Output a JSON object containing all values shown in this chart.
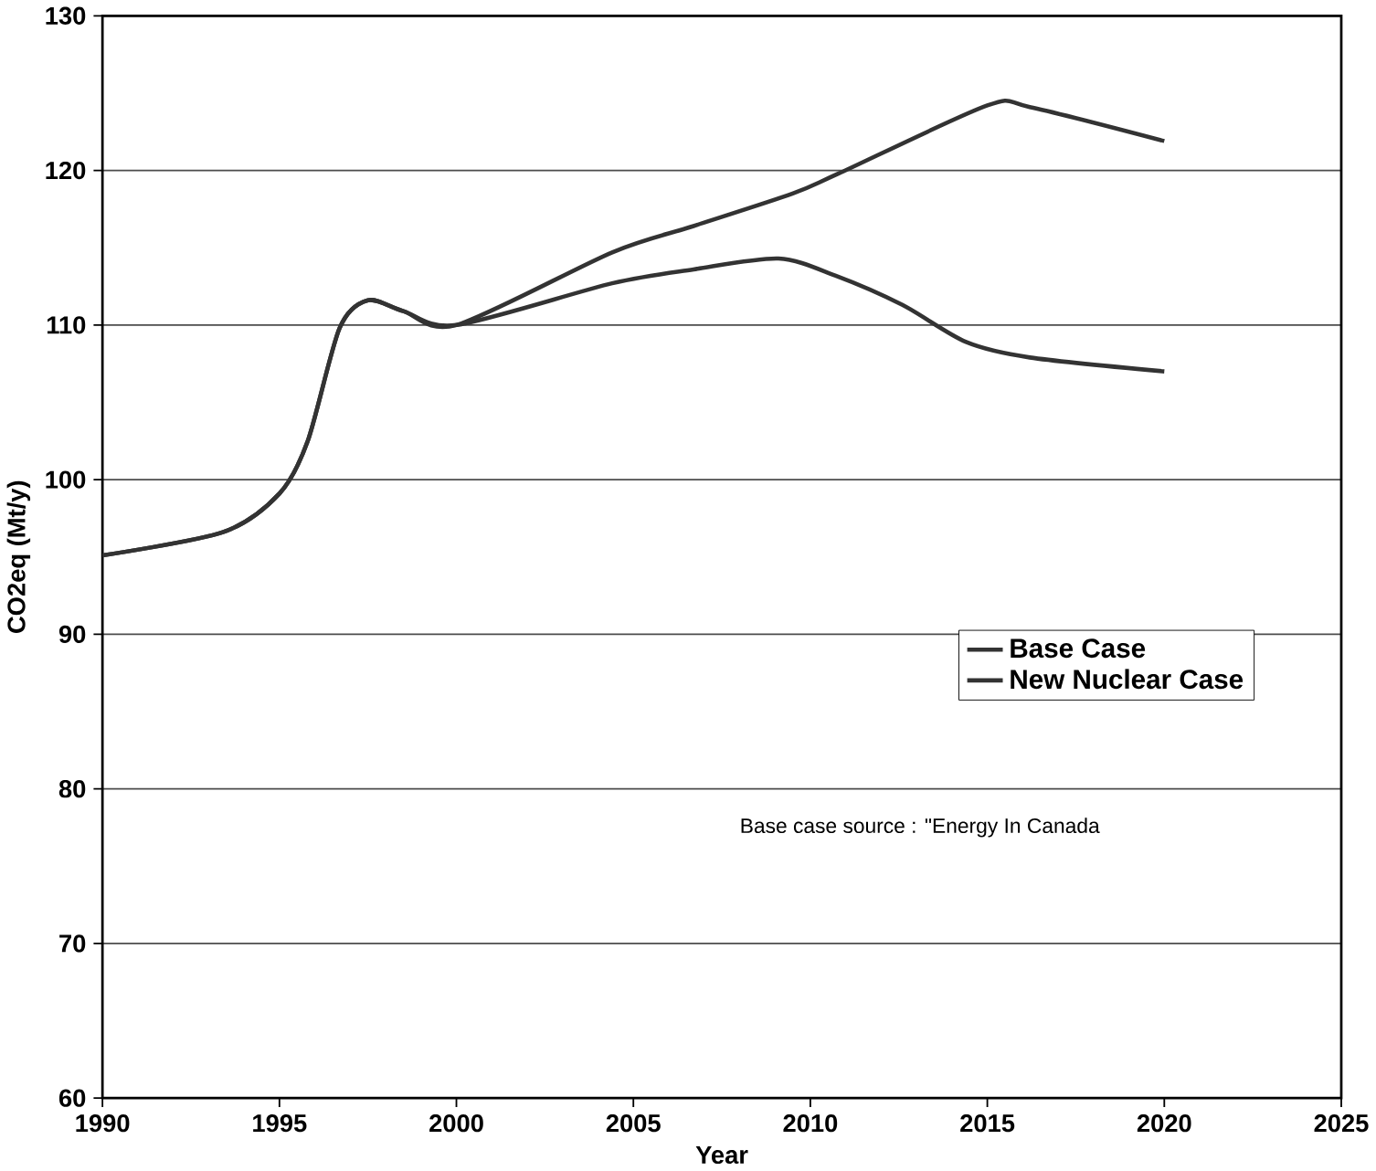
{
  "chart_data": {
    "type": "line",
    "xlabel": "Year",
    "ylabel": "CO2eq (Mt/y)",
    "xlim": [
      1990,
      2025
    ],
    "xticks": [
      1990,
      1995,
      2000,
      2005,
      2010,
      2015,
      2020,
      2025
    ],
    "ylim": [
      60,
      130
    ],
    "yticks": [
      60,
      70,
      80,
      90,
      100,
      110,
      120,
      130
    ],
    "grid": "y",
    "legend": "right",
    "line_style": "solid",
    "annotations": [
      "Base case source : \"Energy In Canada"
    ],
    "series": [
      {
        "name": "Base Case",
        "color": "#333333",
        "x": [
          1990,
          1993.4,
          1995,
          1995.8,
          1996.7,
          1997.5,
          1998.5,
          2000,
          2004.4,
          2006.7,
          2009.5,
          2010.8,
          2015,
          2016.2,
          2020
        ],
        "values": [
          95.1,
          96.6,
          99.1,
          102.5,
          109.8,
          111.6,
          110.9,
          110,
          114.7,
          116.4,
          118.5,
          119.8,
          124.2,
          124.1,
          121.9
        ]
      },
      {
        "name": "New Nuclear Case",
        "color": "#333333",
        "x": [
          1990,
          1993.4,
          1995,
          1995.8,
          1996.7,
          1997.5,
          1998.5,
          2000,
          2004.4,
          2006.7,
          2009.1,
          2010.7,
          2012.6,
          2014.4,
          2016.2,
          2020
        ],
        "values": [
          95.1,
          96.6,
          99.1,
          102.5,
          109.8,
          111.6,
          110.9,
          110,
          112.7,
          113.6,
          114.3,
          113.2,
          111.3,
          108.9,
          107.9,
          107.0
        ]
      }
    ]
  }
}
